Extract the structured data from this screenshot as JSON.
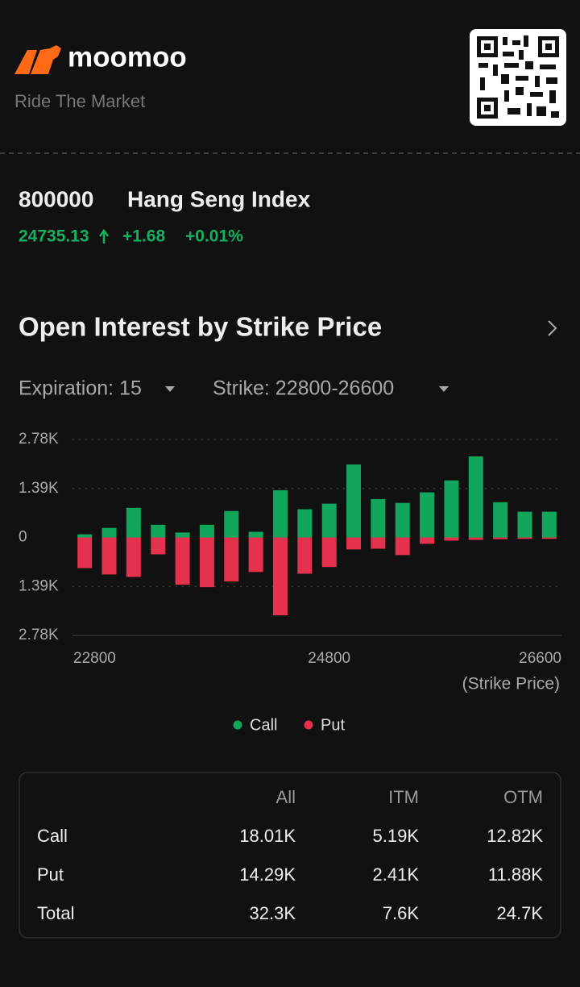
{
  "header": {
    "brand": "moomoo",
    "tagline": "Ride The Market"
  },
  "quote": {
    "code": "800000",
    "name": "Hang Seng Index",
    "price": "24735.13",
    "change": "+1.68",
    "change_pct": "+0.01%"
  },
  "section": {
    "title": "Open Interest by Strike Price",
    "filters": [
      "Expiration: 15",
      "Strike: 22800-26600"
    ]
  },
  "chart_data": {
    "type": "bar",
    "x": [
      22800,
      23000,
      23200,
      23400,
      23600,
      23800,
      24000,
      24200,
      24400,
      24600,
      24800,
      25000,
      25200,
      25400,
      25600,
      25800,
      26000,
      26200,
      26400,
      26600
    ],
    "xlim": [
      22700,
      26700
    ],
    "xticks": [
      22800,
      24800,
      26600
    ],
    "xlabel": "(Strike Price)",
    "ylim": [
      -2780,
      2780
    ],
    "yticks": [
      {
        "value": 2780,
        "label": "2.78K"
      },
      {
        "value": 1390,
        "label": "1.39K"
      },
      0,
      {
        "value": -1390,
        "label": "1.39K"
      },
      {
        "value": -2780,
        "label": "2.78K"
      }
    ],
    "grid": true,
    "legend": "bottom",
    "series": [
      {
        "name": "Call",
        "color": "#12a55c",
        "values": [
          90,
          270,
          840,
          360,
          140,
          360,
          750,
          160,
          1340,
          800,
          960,
          2070,
          1090,
          980,
          1280,
          1620,
          2300,
          1000,
          730,
          730
        ]
      },
      {
        "name": "Put",
        "color": "#e3314e",
        "values": [
          -870,
          -1050,
          -1120,
          -480,
          -1340,
          -1410,
          -1250,
          -980,
          -2210,
          -1030,
          -840,
          -340,
          -320,
          -500,
          -180,
          -90,
          -70,
          -50,
          -40,
          -40
        ]
      }
    ]
  },
  "table": {
    "columns": [
      "All",
      "ITM",
      "OTM"
    ],
    "rows": [
      [
        "Call",
        "18.01K",
        "5.19K",
        "12.82K"
      ],
      [
        "Put",
        "14.29K",
        "2.41K",
        "11.88K"
      ],
      [
        "Total",
        "32.3K",
        "7.6K",
        "24.7K"
      ]
    ]
  }
}
